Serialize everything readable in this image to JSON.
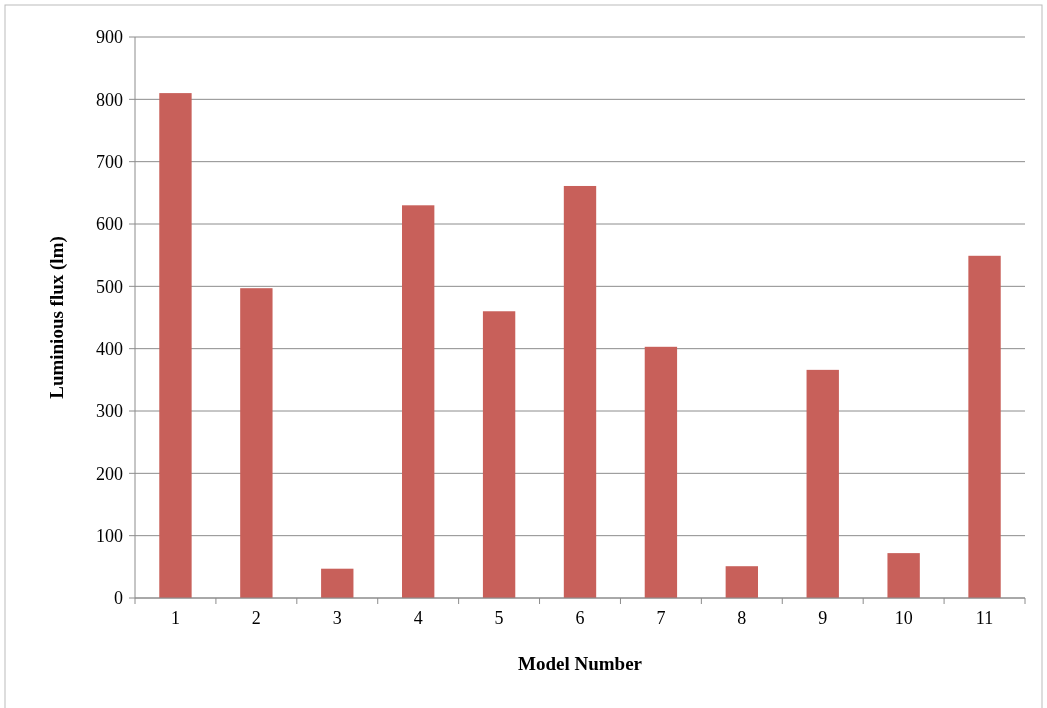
{
  "chart_data": {
    "type": "bar",
    "xlabel": "Model Number",
    "ylabel": "Luminious flux (lm)",
    "categories": [
      "1",
      "2",
      "3",
      "4",
      "5",
      "6",
      "7",
      "8",
      "9",
      "10",
      "11"
    ],
    "values": [
      810,
      497,
      47,
      630,
      460,
      661,
      403,
      51,
      366,
      72,
      549
    ],
    "color": "#c8605a",
    "ylim": [
      0,
      900
    ],
    "yticks": [
      0,
      100,
      200,
      300,
      400,
      500,
      600,
      700,
      800,
      900
    ],
    "grid": "y"
  }
}
